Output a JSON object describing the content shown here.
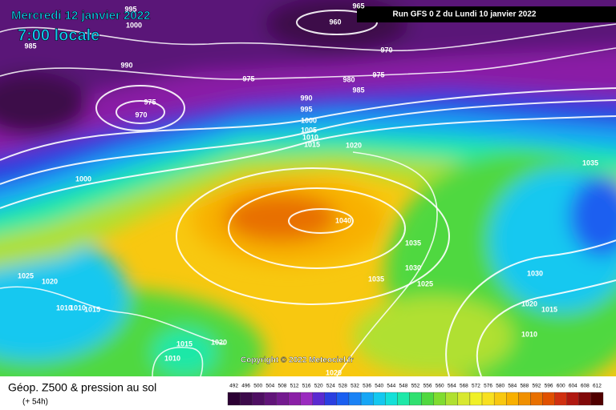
{
  "header": {
    "date": "Mercredi 12 janvier 2022",
    "time": "7:00 locale",
    "run": "Run GFS 0 Z du Lundi 10 janvier 2022"
  },
  "footer": {
    "title": "Géop. Z500 & pression au sol",
    "lead": "(+ 54h)",
    "copyright": "Copyright © 2022 Meteociel.fr"
  },
  "scale": [
    492,
    496,
    500,
    504,
    508,
    512,
    516,
    520,
    524,
    528,
    532,
    536,
    540,
    544,
    548,
    552,
    556,
    560,
    564,
    568,
    572,
    576,
    580,
    584,
    588,
    592,
    596,
    600,
    604,
    608,
    612
  ],
  "isobar_labels": [
    965,
    960,
    995,
    1000,
    985,
    990,
    970,
    975,
    980,
    975,
    985,
    975,
    970,
    990,
    995,
    1000,
    1005,
    1010,
    1015,
    1020,
    1000,
    1035,
    1040,
    1035,
    1030,
    1035,
    1025,
    1030,
    1025,
    1020,
    1010,
    1010,
    1015,
    1020,
    1015,
    1010,
    1015,
    1020,
    1010,
    1020
  ]
}
